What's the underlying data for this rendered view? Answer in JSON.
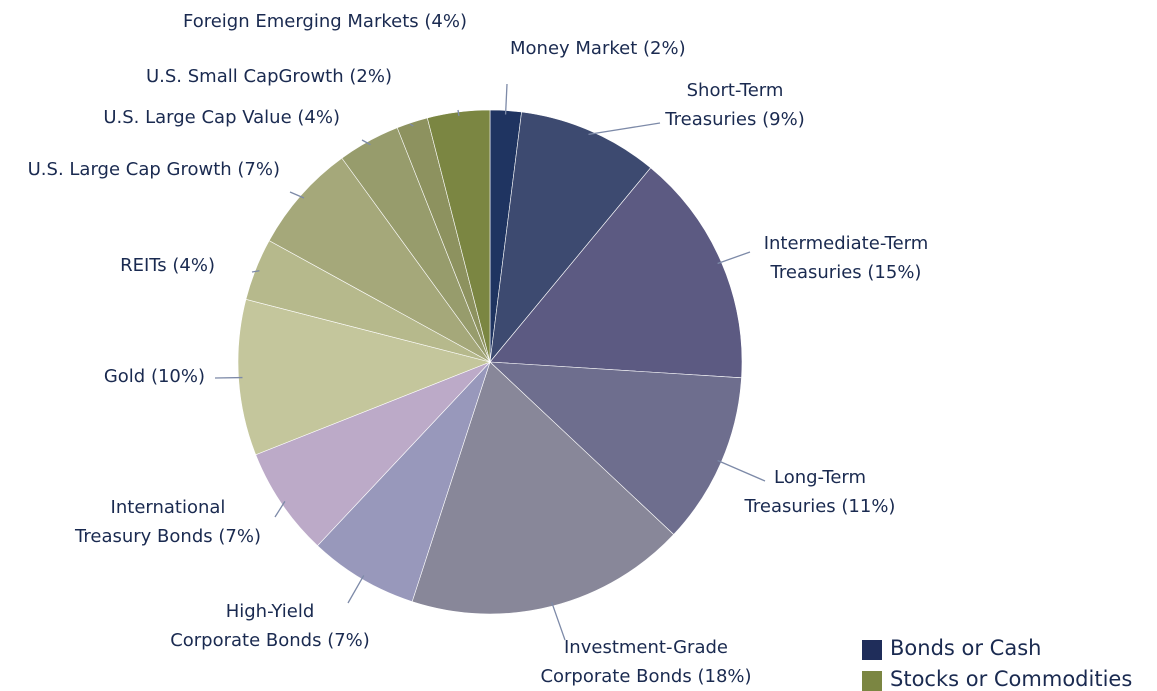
{
  "chart_data": {
    "type": "pie",
    "categories": [
      "Money Market",
      "Short-Term Treasuries",
      "Intermediate-Term Treasuries",
      "Long-Term Treasuries",
      "Investment-Grade Corporate Bonds",
      "High-Yield Corporate Bonds",
      "International Treasury Bonds",
      "Gold",
      "REITs",
      "U.S. Large Cap Growth",
      "U.S. Large Cap Value",
      "U.S. Small CapGrowth",
      "Foreign Emerging Markets"
    ],
    "values": [
      2,
      9,
      15,
      11,
      18,
      7,
      7,
      10,
      4,
      7,
      4,
      2,
      4
    ],
    "value_labels": [
      "(2%)",
      "(9%)",
      "(15%)",
      "(11%)",
      "(18%)",
      "(7%)",
      "(7%)",
      "(10%)",
      "(4%)",
      "(7%)",
      "(4%)",
      "(2%)",
      "(4%)"
    ],
    "colors": [
      "#1f3461",
      "#3d4a70",
      "#5c5a82",
      "#6e6e8e",
      "#888799",
      "#9898bb",
      "#bcaac8",
      "#c4c69c",
      "#b6b98c",
      "#a5a87a",
      "#979c6c",
      "#8d925f",
      "#7b8642"
    ],
    "legend": [
      {
        "name": "Bonds or Cash",
        "color": "#1f2d5a"
      },
      {
        "name": "Stocks or Commodities",
        "color": "#7b8642"
      }
    ]
  }
}
